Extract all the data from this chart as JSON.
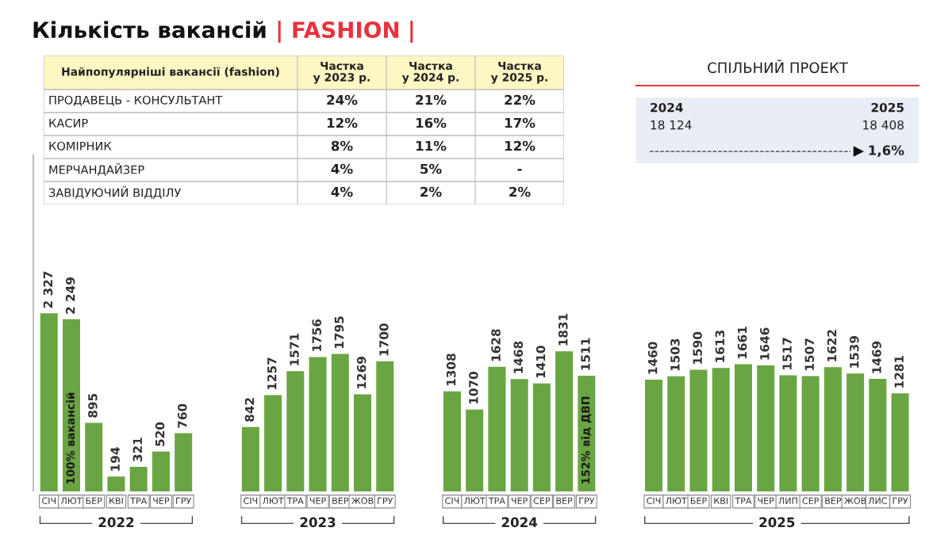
{
  "chart_data": [
    {
      "type": "bar",
      "title": "Кількість вакансій | FASHION |",
      "categories": [
        "СІЧ",
        "ЛЮТ",
        "БЕР",
        "КВІ",
        "ТРА",
        "ЧЕР",
        "ГРУ",
        null,
        null,
        "СІЧ",
        "ЛЮТ",
        "ТРА",
        "ЧЕР",
        "ВЕР",
        "ЖОВ",
        "ГРУ",
        null,
        null,
        "СІЧ",
        "ЛЮТ",
        "ТРА",
        "ЧЕР",
        "СЕР",
        "ВЕР",
        "ГРУ",
        null,
        null,
        "СІЧ",
        "ЛЮТ",
        "БЕР",
        "КВІ",
        "ТРА",
        "ЧЕР",
        "ЛИП",
        "СЕР",
        "ВЕР",
        "ЖОВ",
        "ЛИС",
        "ГРУ"
      ],
      "values": [
        2327,
        2249,
        895,
        194,
        321,
        520,
        760,
        null,
        null,
        842,
        1257,
        1571,
        1756,
        1795,
        1269,
        1700,
        null,
        null,
        1308,
        1070,
        1628,
        1468,
        1410,
        1831,
        1511,
        null,
        null,
        1460,
        1503,
        1590,
        1613,
        1661,
        1646,
        1517,
        1507,
        1622,
        1539,
        1469,
        1281
      ],
      "value_labels": [
        "2 327",
        "2 249",
        "895",
        "194",
        "321",
        "520",
        "760",
        null,
        null,
        "842",
        "1257",
        "1571",
        "1756",
        "1795",
        "1269",
        "1700",
        null,
        null,
        "1308",
        "1070",
        "1628",
        "1468",
        "1410",
        "1831",
        "1511",
        null,
        null,
        "1460",
        "1503",
        "1590",
        "1613",
        "1661",
        "1646",
        "1517",
        "1507",
        "1622",
        "1539",
        "1469",
        "1281"
      ],
      "color": "#6aa543",
      "ylim": [
        0,
        4400
      ],
      "tick_labels": "x",
      "annotations": [
        "2022",
        "2023",
        "2024",
        "2025",
        "100% вакансій",
        "152% від ДВП"
      ]
    },
    {
      "type": "other",
      "categories": [
        "Найпопулярніші вакансії (fashion)",
        "Частка\nу 2023 р.",
        "Частка\nу 2024 р.",
        "Частка\nу 2025 р."
      ],
      "y_categories": [
        "ПРОДАВЕЦЬ - КОНСУЛЬТАНТ",
        "КАСИР",
        "КОМІРНИК",
        "МЕРЧАНДАЙЗЕР",
        "ЗАВІДУЮЧИЙ ВІДДІЛУ"
      ],
      "cell_labels": [
        [
          "24%",
          "21%",
          "22%"
        ],
        [
          "12%",
          "16%",
          "17%"
        ],
        [
          "8%",
          "11%",
          "12%"
        ],
        [
          "4%",
          "5%",
          "-"
        ],
        [
          "4%",
          "2%",
          "2%"
        ]
      ]
    },
    {
      "type": "other",
      "title": "СПІЛЬНИЙ ПРОЕКТ",
      "annotations": [
        "2024",
        "2025",
        "18 124",
        "18 408",
        "1,6%"
      ]
    }
  ]
}
